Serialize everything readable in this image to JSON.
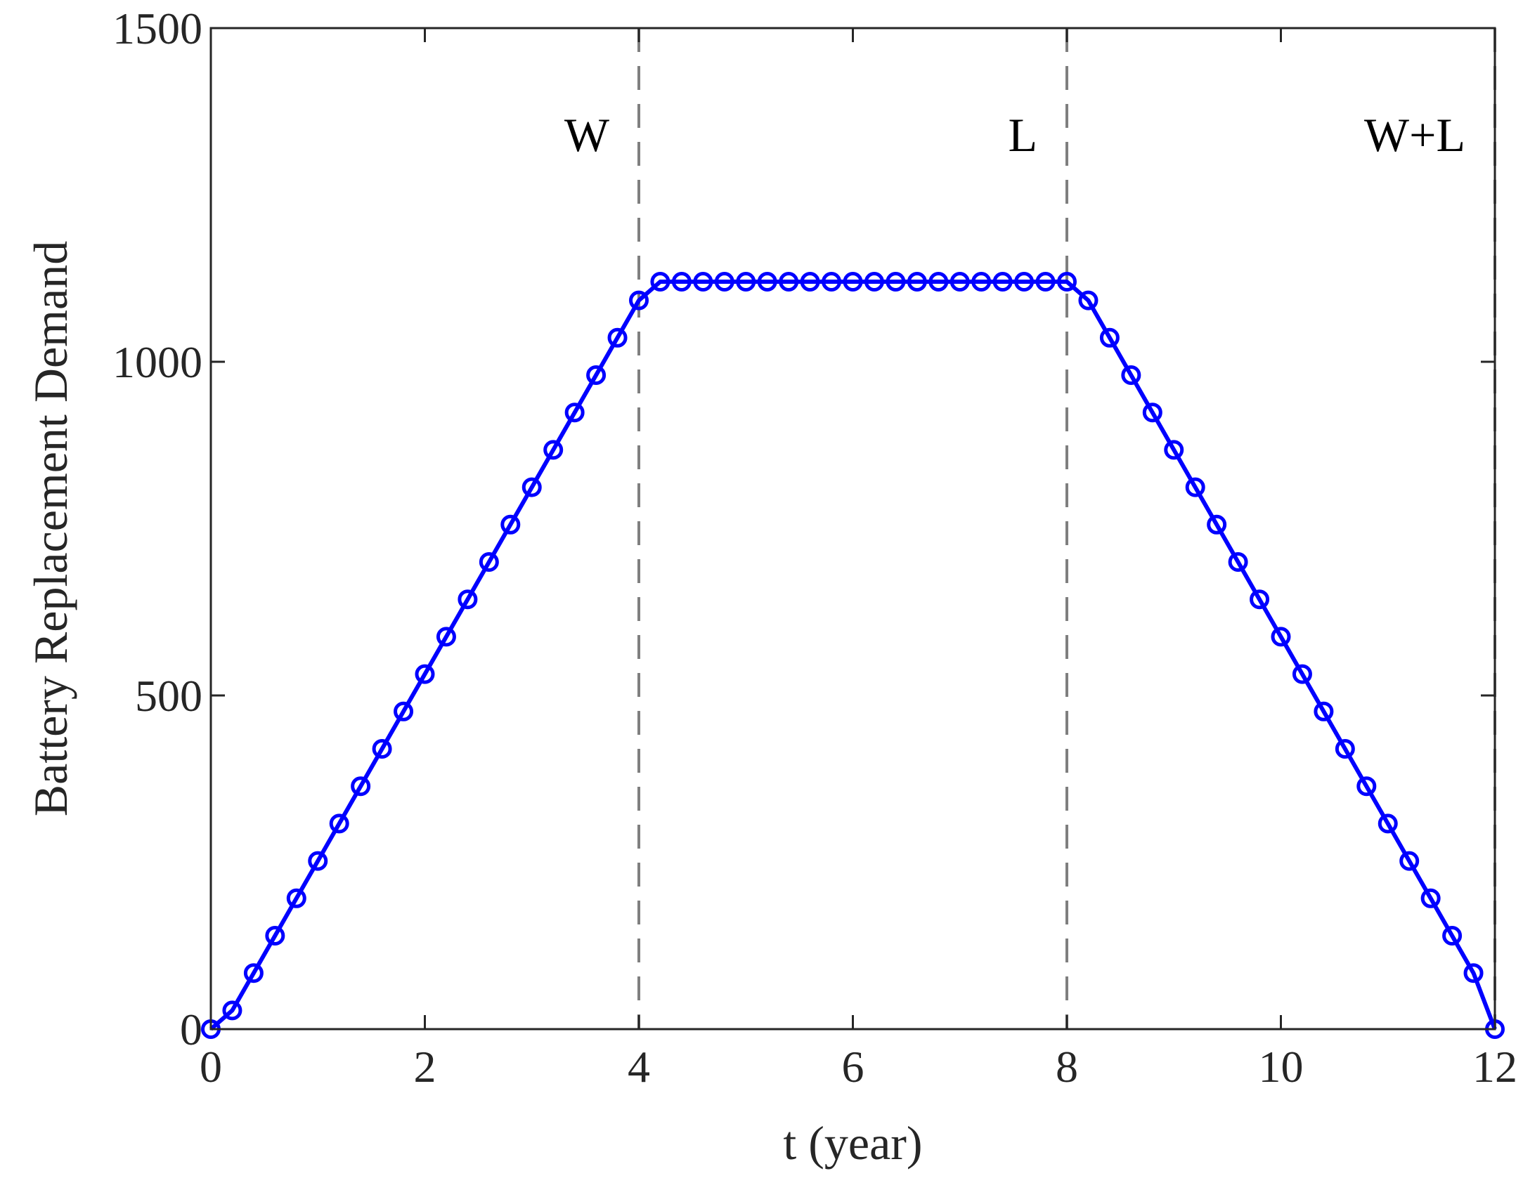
{
  "chart_data": {
    "type": "line",
    "title": "",
    "xlabel": "t (year)",
    "ylabel": "Battery Replacement Demand",
    "xlim": [
      0,
      12
    ],
    "ylim": [
      0,
      1500
    ],
    "xticks": [
      0,
      2,
      4,
      6,
      8,
      10,
      12
    ],
    "yticks": [
      0,
      500,
      1000,
      1500
    ],
    "grid": false,
    "series": [
      {
        "color": "#0000ff",
        "marker": "circle",
        "x": [
          0,
          0.2,
          0.4,
          0.6,
          0.8,
          1.0,
          1.2,
          1.4,
          1.6,
          1.8,
          2.0,
          2.2,
          2.4,
          2.6,
          2.8,
          3.0,
          3.2,
          3.4,
          3.6,
          3.8,
          4.0,
          4.2,
          4.4,
          4.6,
          4.8,
          5.0,
          5.2,
          5.4,
          5.6,
          5.8,
          6.0,
          6.2,
          6.4,
          6.6,
          6.8,
          7.0,
          7.2,
          7.4,
          7.6,
          7.8,
          8.0,
          8.2,
          8.4,
          8.6,
          8.8,
          9.0,
          9.2,
          9.4,
          9.6,
          9.8,
          10.0,
          10.2,
          10.4,
          10.6,
          10.8,
          11.0,
          11.2,
          11.4,
          11.6,
          11.8,
          12.0
        ],
        "y": [
          0,
          28,
          84,
          140,
          196,
          252,
          308,
          364,
          420,
          476,
          532,
          588,
          644,
          700,
          756,
          812,
          868,
          924,
          980,
          1036,
          1092,
          1120,
          1120,
          1120,
          1120,
          1120,
          1120,
          1120,
          1120,
          1120,
          1120,
          1120,
          1120,
          1120,
          1120,
          1120,
          1120,
          1120,
          1120,
          1120,
          1120,
          1092,
          1036,
          980,
          924,
          868,
          812,
          756,
          700,
          644,
          588,
          532,
          476,
          420,
          364,
          308,
          252,
          196,
          140,
          84,
          0
        ]
      }
    ],
    "vlines": [
      {
        "x": 4,
        "label": "W",
        "color": "#7f7f7f",
        "style": "dashed"
      },
      {
        "x": 8,
        "label": "L",
        "color": "#7f7f7f",
        "style": "dashed"
      },
      {
        "x": 12,
        "label": "W+L",
        "color": "#7f7f7f",
        "style": "dashed"
      }
    ]
  }
}
